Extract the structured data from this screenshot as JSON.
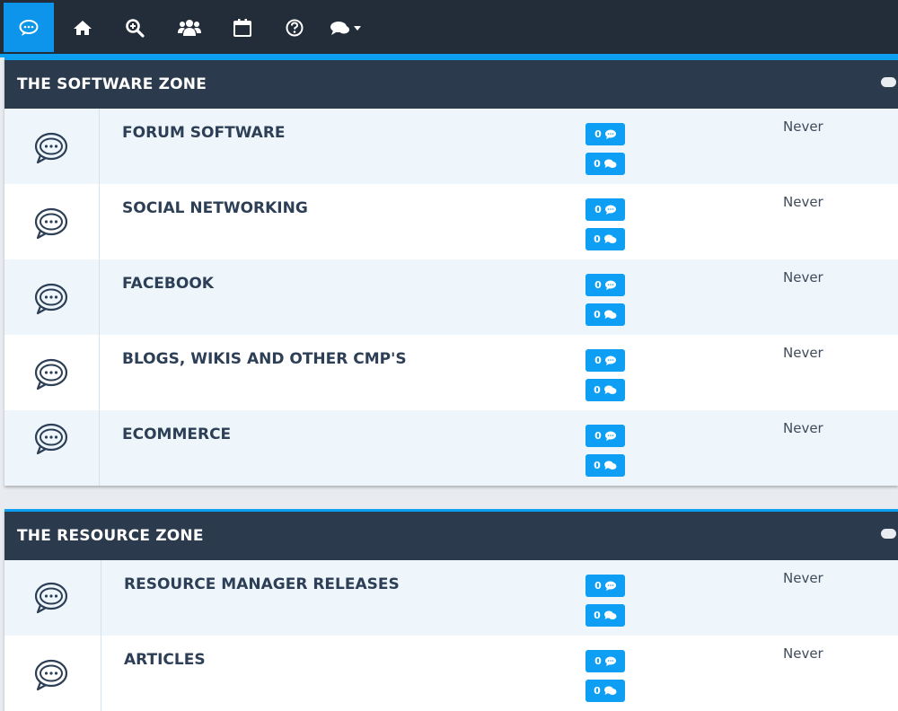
{
  "nav": {
    "items": [
      {
        "icon": "forums-icon",
        "active": true
      },
      {
        "icon": "home-icon"
      },
      {
        "icon": "search-icon"
      },
      {
        "icon": "members-icon"
      },
      {
        "icon": "calendar-icon"
      },
      {
        "icon": "help-icon"
      },
      {
        "icon": "conversations-icon"
      }
    ]
  },
  "sections": [
    {
      "title": "THE SOFTWARE ZONE",
      "forums": [
        {
          "title": "FORUM SOFTWARE",
          "threads": "0",
          "posts": "0",
          "last_post": "Never"
        },
        {
          "title": "SOCIAL NETWORKING",
          "threads": "0",
          "posts": "0",
          "last_post": "Never"
        },
        {
          "title": "FACEBOOK",
          "threads": "0",
          "posts": "0",
          "last_post": "Never"
        },
        {
          "title": "BLOGS, WIKIS AND OTHER CMP'S",
          "threads": "0",
          "posts": "0",
          "last_post": "Never"
        },
        {
          "title": "ECOMMERCE",
          "threads": "0",
          "posts": "0",
          "last_post": "Never"
        }
      ]
    },
    {
      "title": "THE RESOURCE ZONE",
      "forums": [
        {
          "title": "RESOURCE MANAGER RELEASES",
          "threads": "0",
          "posts": "0",
          "last_post": "Never"
        },
        {
          "title": "ARTICLES",
          "threads": "0",
          "posts": "0",
          "last_post": "Never"
        }
      ]
    }
  ],
  "colors": {
    "topbar": "#232d3a",
    "accent": "#0ea0f0",
    "section_header": "#2c3a4d",
    "badge": "#0e9ef3",
    "row_shade": "#eef6fc"
  }
}
